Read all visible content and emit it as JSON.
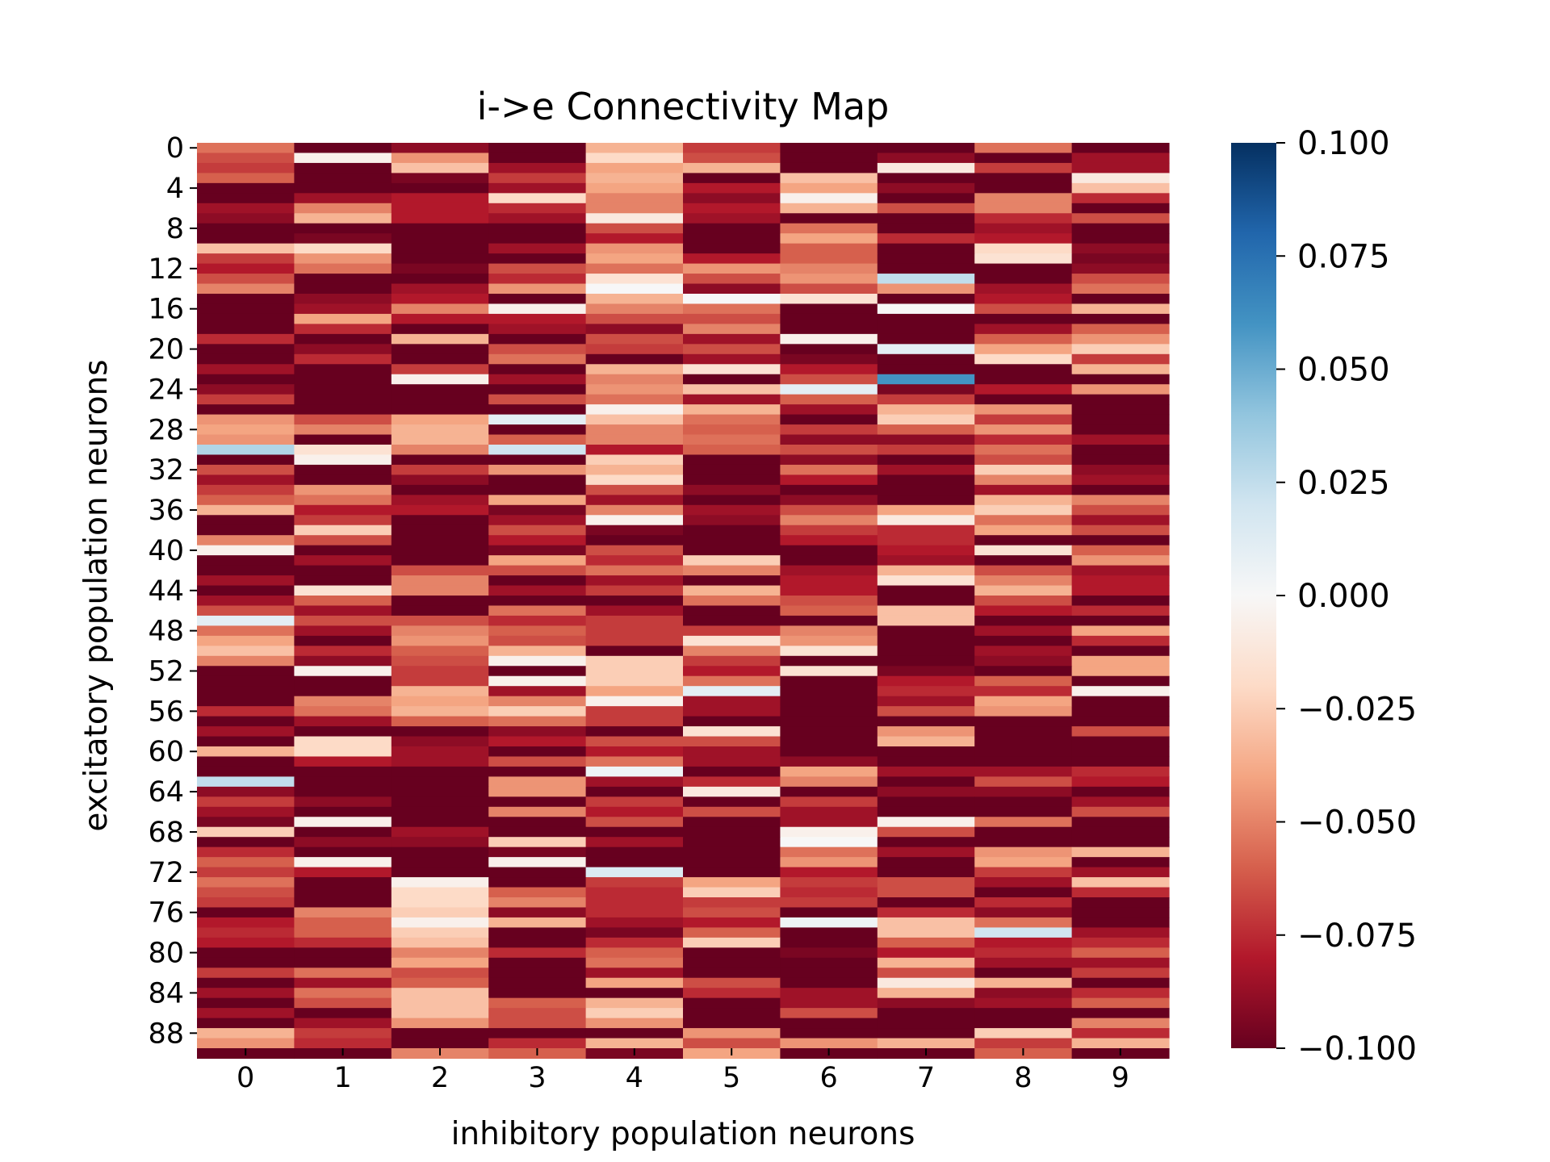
{
  "chart_data": {
    "type": "heatmap",
    "title": "i->e Connectivity Map",
    "xlabel": "inhibitory population neurons",
    "ylabel": "excitatory population neurons",
    "x_ticks": [
      "0",
      "1",
      "2",
      "3",
      "4",
      "5",
      "6",
      "7",
      "8",
      "9"
    ],
    "y_ticks": [
      "0",
      "4",
      "8",
      "12",
      "16",
      "20",
      "24",
      "28",
      "32",
      "36",
      "40",
      "44",
      "48",
      "52",
      "56",
      "60",
      "64",
      "68",
      "72",
      "76",
      "80",
      "84",
      "88"
    ],
    "rows": 90,
    "cols": 10,
    "colormap": "RdBu",
    "vmin": -0.1,
    "vmax": 0.1,
    "colorbar_ticks": [
      0.1,
      0.075,
      0.05,
      0.025,
      0.0,
      -0.025,
      -0.05,
      -0.075,
      -0.1
    ],
    "colorbar_tick_labels": [
      "0.100",
      "0.075",
      "0.050",
      "0.025",
      "0.000",
      "−0.025",
      "−0.050",
      "−0.075",
      "−0.100"
    ],
    "grid": false,
    "values": [
      [
        -0.055,
        -0.1,
        -0.09,
        -0.1,
        -0.035,
        -0.07,
        -0.1,
        -0.1,
        -0.055,
        -0.1
      ],
      [
        -0.065,
        -0.005,
        -0.045,
        -0.1,
        -0.02,
        -0.065,
        -0.1,
        -0.09,
        -0.1,
        -0.085
      ],
      [
        -0.07,
        -0.1,
        -0.03,
        -0.085,
        -0.04,
        -0.035,
        -0.1,
        -0.01,
        -0.07,
        -0.085
      ],
      [
        -0.06,
        -0.1,
        -0.095,
        -0.07,
        -0.035,
        -0.1,
        -0.03,
        -0.1,
        -0.1,
        -0.01
      ],
      [
        -0.1,
        -0.1,
        -0.1,
        -0.085,
        -0.04,
        -0.08,
        -0.04,
        -0.09,
        -0.1,
        -0.03
      ],
      [
        -0.1,
        -0.085,
        -0.08,
        -0.02,
        -0.05,
        -0.09,
        -0.005,
        -0.1,
        -0.05,
        -0.075
      ],
      [
        -0.085,
        -0.05,
        -0.08,
        -0.075,
        -0.05,
        -0.08,
        -0.035,
        -0.065,
        -0.05,
        -0.1
      ],
      [
        -0.09,
        -0.035,
        -0.08,
        -0.085,
        -0.01,
        -0.085,
        -0.1,
        -0.1,
        -0.075,
        -0.065
      ],
      [
        -0.1,
        -0.1,
        -0.1,
        -0.1,
        -0.065,
        -0.1,
        -0.055,
        -0.1,
        -0.085,
        -0.1
      ],
      [
        -0.1,
        -0.095,
        -0.1,
        -0.1,
        -0.08,
        -0.1,
        -0.04,
        -0.075,
        -0.08,
        -0.1
      ],
      [
        -0.03,
        -0.02,
        -0.1,
        -0.085,
        -0.045,
        -0.1,
        -0.06,
        -0.1,
        -0.02,
        -0.09
      ],
      [
        -0.07,
        -0.045,
        -0.1,
        -0.1,
        -0.04,
        -0.08,
        -0.06,
        -0.1,
        -0.015,
        -0.095
      ],
      [
        -0.08,
        -0.055,
        -0.095,
        -0.065,
        -0.055,
        -0.045,
        -0.05,
        -0.1,
        -0.1,
        -0.09
      ],
      [
        -0.065,
        -0.1,
        -0.1,
        -0.075,
        -0.015,
        -0.065,
        -0.045,
        0.025,
        -0.1,
        -0.065
      ],
      [
        -0.05,
        -0.1,
        -0.085,
        -0.045,
        0.0,
        -0.09,
        -0.065,
        -0.045,
        -0.085,
        -0.055
      ],
      [
        -0.1,
        -0.09,
        -0.08,
        -0.1,
        -0.035,
        -0.0,
        -0.015,
        -0.1,
        -0.08,
        -0.1
      ],
      [
        -0.1,
        -0.085,
        -0.05,
        -0.005,
        -0.05,
        -0.055,
        -0.1,
        -0.0,
        -0.065,
        -0.035
      ],
      [
        -0.1,
        -0.04,
        -0.08,
        -0.08,
        -0.065,
        -0.065,
        -0.1,
        -0.1,
        -0.1,
        -0.1
      ],
      [
        -0.1,
        -0.075,
        -0.1,
        -0.085,
        -0.09,
        -0.05,
        -0.1,
        -0.1,
        -0.085,
        -0.06
      ],
      [
        -0.075,
        -0.1,
        -0.035,
        -0.1,
        -0.065,
        -0.085,
        -0.005,
        -0.1,
        -0.06,
        -0.045
      ],
      [
        -0.1,
        -0.09,
        -0.1,
        -0.065,
        -0.07,
        -0.065,
        -0.1,
        0.01,
        -0.04,
        -0.025
      ],
      [
        -0.1,
        -0.075,
        -0.1,
        -0.055,
        -0.1,
        -0.085,
        -0.095,
        -0.1,
        -0.02,
        -0.07
      ],
      [
        -0.085,
        -0.1,
        -0.07,
        -0.1,
        -0.035,
        -0.015,
        -0.08,
        -0.1,
        -0.1,
        -0.035
      ],
      [
        -0.1,
        -0.1,
        -0.005,
        -0.085,
        -0.05,
        -0.1,
        -0.065,
        0.06,
        -0.1,
        -0.1
      ],
      [
        -0.09,
        -0.1,
        -0.1,
        -0.1,
        -0.045,
        -0.03,
        0.01,
        -0.095,
        -0.08,
        -0.045
      ],
      [
        -0.07,
        -0.1,
        -0.1,
        -0.065,
        -0.055,
        -0.085,
        -0.06,
        -0.07,
        -0.1,
        -0.1
      ],
      [
        -0.1,
        -0.1,
        -0.1,
        -0.1,
        -0.005,
        -0.035,
        -0.085,
        -0.035,
        -0.045,
        -0.1
      ],
      [
        -0.045,
        -0.065,
        -0.04,
        0.01,
        -0.03,
        -0.055,
        -0.1,
        -0.025,
        -0.07,
        -0.1
      ],
      [
        -0.04,
        -0.05,
        -0.035,
        -0.1,
        -0.05,
        -0.06,
        -0.07,
        -0.06,
        -0.045,
        -0.1
      ],
      [
        -0.045,
        -0.1,
        -0.035,
        -0.06,
        -0.05,
        -0.055,
        -0.09,
        -0.09,
        -0.075,
        -0.085
      ],
      [
        0.03,
        -0.015,
        -0.05,
        0.02,
        -0.08,
        -0.06,
        -0.065,
        -0.07,
        -0.055,
        -0.1
      ],
      [
        -0.1,
        -0.005,
        -0.1,
        -0.1,
        -0.025,
        -0.1,
        -0.09,
        -0.1,
        -0.065,
        -0.1
      ],
      [
        -0.065,
        -0.1,
        -0.07,
        -0.045,
        -0.035,
        -0.1,
        -0.055,
        -0.085,
        -0.025,
        -0.09
      ],
      [
        -0.085,
        -0.1,
        -0.09,
        -0.1,
        -0.02,
        -0.1,
        -0.08,
        -0.1,
        -0.05,
        -0.085
      ],
      [
        -0.07,
        -0.045,
        -0.1,
        -0.1,
        -0.065,
        -0.09,
        -0.1,
        -0.1,
        -0.085,
        -0.1
      ],
      [
        -0.06,
        -0.055,
        -0.085,
        -0.04,
        -0.085,
        -0.1,
        -0.09,
        -0.1,
        -0.035,
        -0.05
      ],
      [
        -0.035,
        -0.08,
        -0.08,
        -0.095,
        -0.05,
        -0.085,
        -0.065,
        -0.04,
        -0.025,
        -0.065
      ],
      [
        -0.1,
        -0.07,
        -0.1,
        -0.085,
        -0.005,
        -0.09,
        -0.05,
        -0.01,
        -0.055,
        -0.085
      ],
      [
        -0.1,
        -0.025,
        -0.1,
        -0.065,
        -0.095,
        -0.1,
        -0.07,
        -0.075,
        -0.04,
        -0.065
      ],
      [
        -0.05,
        -0.065,
        -0.1,
        -0.08,
        -0.1,
        -0.1,
        -0.08,
        -0.075,
        -0.1,
        -0.1
      ],
      [
        -0.005,
        -0.1,
        -0.1,
        -0.095,
        -0.065,
        -0.1,
        -0.1,
        -0.08,
        -0.015,
        -0.06
      ],
      [
        -0.1,
        -0.085,
        -0.1,
        -0.04,
        -0.075,
        -0.025,
        -0.1,
        -0.085,
        -0.1,
        -0.045
      ],
      [
        -0.1,
        -0.1,
        -0.065,
        -0.065,
        -0.055,
        -0.05,
        -0.085,
        -0.035,
        -0.065,
        -0.085
      ],
      [
        -0.085,
        -0.1,
        -0.05,
        -0.1,
        -0.085,
        -0.1,
        -0.08,
        -0.015,
        -0.05,
        -0.08
      ],
      [
        -0.1,
        -0.015,
        -0.05,
        -0.085,
        -0.07,
        -0.035,
        -0.08,
        -0.1,
        -0.035,
        -0.08
      ],
      [
        -0.085,
        -0.06,
        -0.1,
        -0.1,
        -0.1,
        -0.055,
        -0.065,
        -0.1,
        -0.065,
        -0.1
      ],
      [
        -0.065,
        -0.085,
        -0.1,
        -0.055,
        -0.085,
        -0.1,
        -0.06,
        -0.03,
        -0.08,
        -0.075
      ],
      [
        0.01,
        -0.065,
        -0.065,
        -0.075,
        -0.07,
        -0.1,
        -0.1,
        -0.03,
        -0.1,
        -0.1
      ],
      [
        -0.055,
        -0.085,
        -0.05,
        -0.06,
        -0.07,
        -0.07,
        -0.05,
        -0.1,
        -0.085,
        -0.04
      ],
      [
        -0.04,
        -0.1,
        -0.045,
        -0.065,
        -0.07,
        -0.015,
        -0.045,
        -0.1,
        -0.1,
        -0.075
      ],
      [
        -0.03,
        -0.075,
        -0.06,
        -0.035,
        -0.1,
        -0.05,
        -0.015,
        -0.1,
        -0.085,
        -0.1
      ],
      [
        -0.05,
        -0.09,
        -0.065,
        -0.005,
        -0.025,
        -0.07,
        -0.1,
        -0.1,
        -0.09,
        -0.04
      ],
      [
        -0.1,
        -0.005,
        -0.07,
        -0.1,
        -0.025,
        -0.08,
        -0.015,
        -0.095,
        -0.1,
        -0.04
      ],
      [
        -0.1,
        -0.1,
        -0.07,
        -0.005,
        -0.025,
        -0.055,
        -0.1,
        -0.08,
        -0.06,
        -0.1
      ],
      [
        -0.1,
        -0.1,
        -0.035,
        -0.085,
        -0.04,
        0.01,
        -0.1,
        -0.075,
        -0.075,
        -0.005
      ],
      [
        -0.1,
        -0.05,
        -0.04,
        -0.05,
        -0.005,
        -0.085,
        -0.1,
        -0.085,
        -0.04,
        -0.1
      ],
      [
        -0.075,
        -0.055,
        -0.035,
        -0.025,
        -0.07,
        -0.085,
        -0.1,
        -0.065,
        -0.045,
        -0.1
      ],
      [
        -0.1,
        -0.085,
        -0.06,
        -0.055,
        -0.07,
        -0.1,
        -0.1,
        -0.1,
        -0.1,
        -0.1
      ],
      [
        -0.085,
        -0.1,
        -0.1,
        -0.09,
        -0.1,
        -0.015,
        -0.1,
        -0.045,
        -0.1,
        -0.065
      ],
      [
        -0.1,
        -0.02,
        -0.09,
        -0.08,
        -0.065,
        -0.065,
        -0.1,
        -0.035,
        -0.1,
        -0.1
      ],
      [
        -0.035,
        -0.02,
        -0.085,
        -0.1,
        -0.08,
        -0.085,
        -0.1,
        -0.1,
        -0.1,
        -0.1
      ],
      [
        -0.1,
        -0.08,
        -0.085,
        -0.065,
        -0.055,
        -0.085,
        -0.09,
        -0.1,
        -0.1,
        -0.1
      ],
      [
        -0.1,
        -0.1,
        -0.1,
        -0.1,
        0.005,
        -0.1,
        -0.04,
        -0.085,
        -0.085,
        -0.075
      ],
      [
        0.025,
        -0.1,
        -0.1,
        -0.045,
        -0.085,
        -0.075,
        -0.05,
        -0.1,
        -0.065,
        -0.08
      ],
      [
        -0.09,
        -0.1,
        -0.1,
        -0.045,
        -0.1,
        -0.01,
        -0.1,
        -0.09,
        -0.09,
        -0.1
      ],
      [
        -0.07,
        -0.09,
        -0.1,
        -0.1,
        -0.07,
        -0.1,
        -0.07,
        -0.1,
        -0.1,
        -0.085
      ],
      [
        -0.085,
        -0.1,
        -0.1,
        -0.05,
        -0.08,
        -0.065,
        -0.085,
        -0.1,
        -0.1,
        -0.065
      ],
      [
        -0.095,
        -0.005,
        -0.1,
        -0.1,
        -0.065,
        -0.1,
        -0.085,
        -0.005,
        -0.055,
        -0.1
      ],
      [
        -0.025,
        -0.1,
        -0.085,
        -0.1,
        -0.1,
        -0.1,
        -0.005,
        -0.065,
        -0.1,
        -0.1
      ],
      [
        -0.1,
        -0.09,
        -0.09,
        -0.025,
        -0.085,
        -0.1,
        0.0,
        -0.1,
        -0.1,
        -0.1
      ],
      [
        -0.075,
        -0.1,
        -0.1,
        -0.095,
        -0.1,
        -0.1,
        -0.055,
        -0.085,
        -0.045,
        -0.035
      ],
      [
        -0.06,
        -0.005,
        -0.1,
        -0.005,
        -0.1,
        -0.1,
        -0.045,
        -0.1,
        -0.04,
        -0.1
      ],
      [
        -0.07,
        -0.08,
        -0.1,
        -0.1,
        0.015,
        -0.1,
        -0.08,
        -0.1,
        -0.07,
        -0.085
      ],
      [
        -0.055,
        -0.1,
        -0.005,
        -0.1,
        -0.07,
        -0.04,
        -0.07,
        -0.065,
        -0.085,
        -0.03
      ],
      [
        -0.065,
        -0.1,
        -0.02,
        -0.06,
        -0.075,
        -0.025,
        -0.075,
        -0.065,
        -0.1,
        -0.075
      ],
      [
        -0.07,
        -0.1,
        -0.02,
        -0.05,
        -0.075,
        -0.07,
        -0.07,
        -0.1,
        -0.075,
        -0.1
      ],
      [
        -0.1,
        -0.05,
        -0.025,
        -0.09,
        -0.075,
        -0.065,
        -0.1,
        -0.075,
        -0.09,
        -0.1
      ],
      [
        -0.08,
        -0.06,
        -0.005,
        -0.035,
        -0.085,
        -0.08,
        0.005,
        -0.03,
        -0.055,
        -0.1
      ],
      [
        -0.075,
        -0.06,
        -0.025,
        -0.1,
        -0.095,
        -0.06,
        -0.1,
        -0.03,
        0.02,
        -0.085
      ],
      [
        -0.08,
        -0.075,
        -0.03,
        -0.1,
        -0.075,
        -0.025,
        -0.1,
        -0.06,
        -0.08,
        -0.075
      ],
      [
        -0.1,
        -0.1,
        -0.05,
        -0.075,
        -0.06,
        -0.1,
        -0.095,
        -0.08,
        -0.075,
        -0.06
      ],
      [
        -0.1,
        -0.1,
        -0.04,
        -0.1,
        -0.055,
        -0.1,
        -0.1,
        -0.035,
        -0.085,
        -0.085
      ],
      [
        -0.07,
        -0.055,
        -0.065,
        -0.1,
        -0.085,
        -0.1,
        -0.1,
        -0.065,
        -0.1,
        -0.07
      ],
      [
        -0.1,
        -0.085,
        -0.06,
        -0.1,
        -0.04,
        -0.065,
        -0.1,
        -0.01,
        -0.035,
        -0.1
      ],
      [
        -0.085,
        -0.055,
        -0.03,
        -0.1,
        -0.1,
        -0.075,
        -0.085,
        -0.035,
        -0.09,
        -0.075
      ],
      [
        -0.1,
        -0.065,
        -0.03,
        -0.06,
        -0.035,
        -0.1,
        -0.085,
        -0.09,
        -0.085,
        -0.06
      ],
      [
        -0.085,
        -0.1,
        -0.03,
        -0.065,
        -0.025,
        -0.1,
        -0.065,
        -0.1,
        -0.1,
        -0.1
      ],
      [
        -0.1,
        -0.085,
        -0.045,
        -0.065,
        -0.045,
        -0.1,
        -0.1,
        -0.1,
        -0.1,
        -0.05
      ],
      [
        -0.035,
        -0.07,
        -0.1,
        -0.1,
        -0.1,
        -0.045,
        -0.1,
        -0.1,
        -0.025,
        -0.075
      ],
      [
        -0.045,
        -0.075,
        -0.1,
        -0.075,
        -0.035,
        -0.065,
        -0.045,
        -0.035,
        -0.07,
        -0.035
      ],
      [
        -0.1,
        -0.1,
        -0.05,
        -0.06,
        -0.095,
        -0.04,
        -0.1,
        -0.1,
        -0.06,
        -0.1
      ]
    ]
  }
}
